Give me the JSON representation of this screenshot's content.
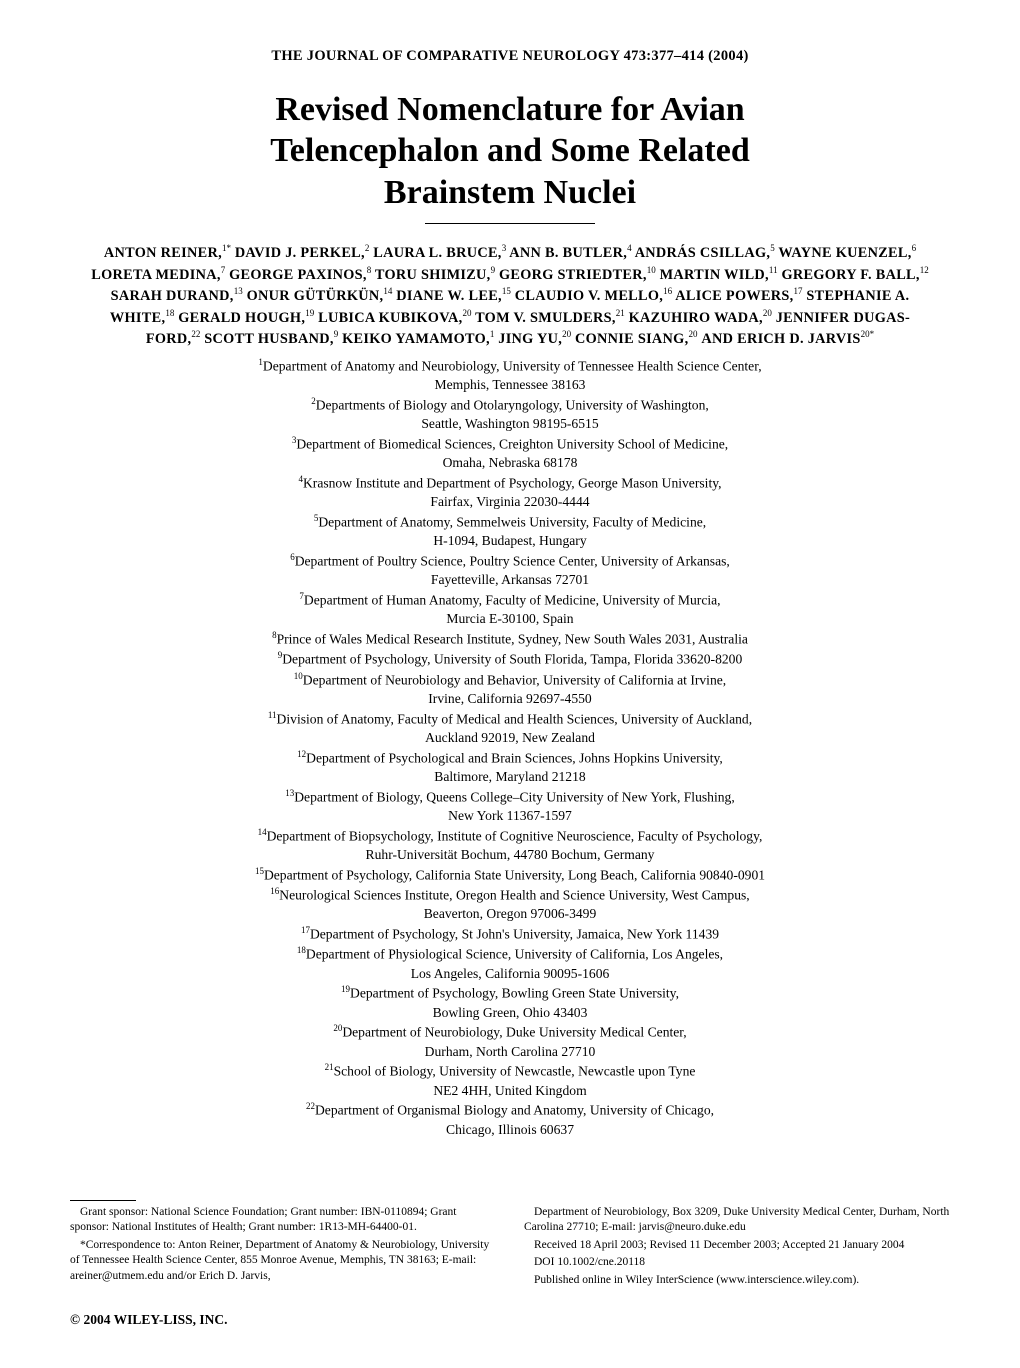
{
  "journal_header": "THE JOURNAL OF COMPARATIVE NEUROLOGY 473:377–414 (2004)",
  "title_line1": "Revised Nomenclature for Avian",
  "title_line2": "Telencephalon and Some Related",
  "title_line3": "Brainstem Nuclei",
  "authors": [
    {
      "name": "ANTON REINER,",
      "sup": "1*"
    },
    {
      "name": "DAVID J. PERKEL,",
      "sup": "2"
    },
    {
      "name": "LAURA L. BRUCE,",
      "sup": "3"
    },
    {
      "name": "ANN B. BUTLER,",
      "sup": "4"
    },
    {
      "name": "ANDRÁS CSILLAG,",
      "sup": "5"
    },
    {
      "name": "WAYNE KUENZEL,",
      "sup": "6"
    },
    {
      "name": "LORETA MEDINA,",
      "sup": "7"
    },
    {
      "name": "GEORGE PAXINOS,",
      "sup": "8"
    },
    {
      "name": "TORU SHIMIZU,",
      "sup": "9"
    },
    {
      "name": "GEORG STRIEDTER,",
      "sup": "10"
    },
    {
      "name": "MARTIN WILD,",
      "sup": "11"
    },
    {
      "name": "GREGORY F. BALL,",
      "sup": "12"
    },
    {
      "name": "SARAH DURAND,",
      "sup": "13"
    },
    {
      "name": "ONUR GÜTÜRKÜN,",
      "sup": "14"
    },
    {
      "name": "DIANE W. LEE,",
      "sup": "15"
    },
    {
      "name": "CLAUDIO V. MELLO,",
      "sup": "16"
    },
    {
      "name": "ALICE POWERS,",
      "sup": "17"
    },
    {
      "name": "STEPHANIE A. WHITE,",
      "sup": "18"
    },
    {
      "name": "GERALD HOUGH,",
      "sup": "19"
    },
    {
      "name": "LUBICA KUBIKOVA,",
      "sup": "20"
    },
    {
      "name": "TOM V. SMULDERS,",
      "sup": "21"
    },
    {
      "name": "KAZUHIRO WADA,",
      "sup": "20"
    },
    {
      "name": "JENNIFER DUGAS-FORD,",
      "sup": "22"
    },
    {
      "name": "SCOTT HUSBAND,",
      "sup": "9"
    },
    {
      "name": "KEIKO YAMAMOTO,",
      "sup": "1"
    },
    {
      "name": "JING YU,",
      "sup": "20"
    },
    {
      "name": "CONNIE SIANG,",
      "sup": "20"
    },
    {
      "name": "ERICH D. JARVIS",
      "sup": "20*"
    }
  ],
  "and_word": "AND",
  "affiliations": [
    {
      "sup": "1",
      "line1": "Department of Anatomy and Neurobiology, University of Tennessee Health Science Center,",
      "line2": "Memphis, Tennessee 38163"
    },
    {
      "sup": "2",
      "line1": "Departments of Biology and Otolaryngology, University of Washington,",
      "line2": "Seattle, Washington 98195-6515"
    },
    {
      "sup": "3",
      "line1": "Department of Biomedical Sciences, Creighton University School of Medicine,",
      "line2": "Omaha, Nebraska 68178"
    },
    {
      "sup": "4",
      "line1": "Krasnow Institute and Department of Psychology, George Mason University,",
      "line2": "Fairfax, Virginia 22030-4444"
    },
    {
      "sup": "5",
      "line1": "Department of Anatomy, Semmelweis University, Faculty of Medicine,",
      "line2": "H-1094, Budapest, Hungary"
    },
    {
      "sup": "6",
      "line1": "Department of Poultry Science, Poultry Science Center, University of Arkansas,",
      "line2": "Fayetteville, Arkansas 72701"
    },
    {
      "sup": "7",
      "line1": "Department of Human Anatomy, Faculty of Medicine, University of Murcia,",
      "line2": "Murcia E-30100, Spain"
    },
    {
      "sup": "8",
      "line1": "Prince of Wales Medical Research Institute, Sydney, New South Wales 2031, Australia",
      "line2": ""
    },
    {
      "sup": "9",
      "line1": "Department of Psychology, University of South Florida, Tampa, Florida 33620-8200",
      "line2": ""
    },
    {
      "sup": "10",
      "line1": "Department of Neurobiology and Behavior, University of California at Irvine,",
      "line2": "Irvine, California 92697-4550"
    },
    {
      "sup": "11",
      "line1": "Division of Anatomy, Faculty of Medical and Health Sciences, University of Auckland,",
      "line2": "Auckland 92019, New Zealand"
    },
    {
      "sup": "12",
      "line1": "Department of Psychological and Brain Sciences, Johns Hopkins University,",
      "line2": "Baltimore, Maryland 21218"
    },
    {
      "sup": "13",
      "line1": "Department of Biology, Queens College–City University of New York, Flushing,",
      "line2": "New York 11367-1597"
    },
    {
      "sup": "14",
      "line1": "Department of Biopsychology, Institute of Cognitive Neuroscience, Faculty of Psychology,",
      "line2": "Ruhr-Universität Bochum, 44780 Bochum, Germany"
    },
    {
      "sup": "15",
      "line1": "Department of Psychology, California State University, Long Beach, California 90840-0901",
      "line2": ""
    },
    {
      "sup": "16",
      "line1": "Neurological Sciences Institute, Oregon Health and Science University, West Campus,",
      "line2": "Beaverton, Oregon 97006-3499"
    },
    {
      "sup": "17",
      "line1": "Department of Psychology, St John's University, Jamaica, New York 11439",
      "line2": ""
    },
    {
      "sup": "18",
      "line1": "Department of Physiological Science, University of California, Los Angeles,",
      "line2": "Los Angeles, California 90095-1606"
    },
    {
      "sup": "19",
      "line1": "Department of Psychology, Bowling Green State University,",
      "line2": "Bowling Green, Ohio 43403"
    },
    {
      "sup": "20",
      "line1": "Department of Neurobiology, Duke University Medical Center,",
      "line2": "Durham, North Carolina 27710"
    },
    {
      "sup": "21",
      "line1": "School of Biology, University of Newcastle, Newcastle upon Tyne",
      "line2": "NE2 4HH, United Kingdom"
    },
    {
      "sup": "22",
      "line1": "Department of Organismal Biology and Anatomy, University of Chicago,",
      "line2": "Chicago, Illinois 60637"
    }
  ],
  "footnotes_left": [
    "Grant sponsor: National Science Foundation; Grant number: IBN-0110894; Grant sponsor: National Institutes of Health; Grant number: 1R13-MH-64400-01.",
    "*Correspondence to: Anton Reiner, Department of Anatomy & Neurobiology, University of Tennessee Health Science Center, 855 Monroe Avenue, Memphis, TN 38163; E-mail: areiner@utmem.edu and/or Erich D. Jarvis,"
  ],
  "footnotes_right": [
    "Department of Neurobiology, Box 3209, Duke University Medical Center, Durham, North Carolina 27710; E-mail: jarvis@neuro.duke.edu",
    "Received 18 April 2003; Revised 11 December 2003; Accepted 21 January 2004",
    "DOI 10.1002/cne.20118",
    "Published online  in Wiley InterScience (www.interscience.wiley.com)."
  ],
  "copyright": "© 2004 WILEY-LISS, INC."
}
